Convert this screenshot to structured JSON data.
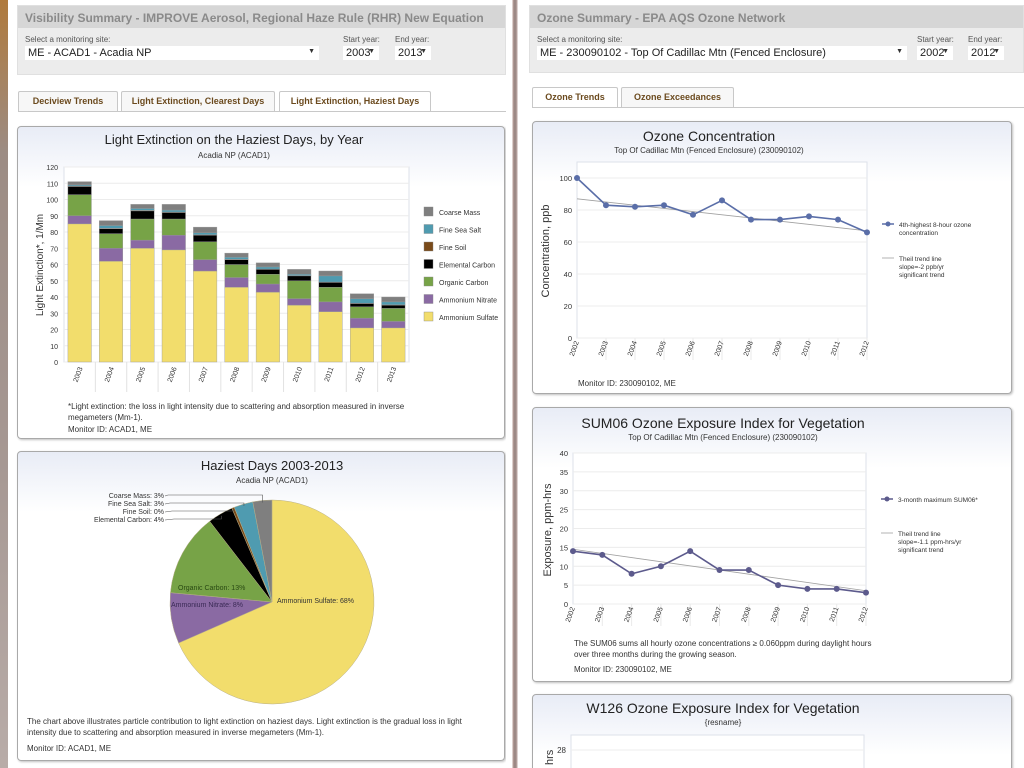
{
  "left": {
    "summary_title": "Visibility Summary - IMPROVE Aerosol, Regional Haze Rule (RHR) New Equation",
    "site_label": "Select a monitoring site:",
    "site_value": "ME - ACAD1 - Acadia NP",
    "start_label": "Start year:",
    "start_value": "2003",
    "end_label": "End year:",
    "end_value": "2013",
    "tabs": [
      {
        "label": "Deciview Trends",
        "active": false
      },
      {
        "label": "Light Extinction, Clearest Days",
        "active": false
      },
      {
        "label": "Light Extinction, Haziest Days",
        "active": true
      }
    ],
    "bar_card": {
      "footnote": "*Light extinction: the loss in light intensity due to scattering and absorption measured in inverse megameters (Mm-1).",
      "monitor": "Monitor ID: ACAD1, ME"
    },
    "pie_card": {
      "description": "The chart above illustrates particle contribution to light extinction on haziest days. Light extinction is the gradual loss in light intensity due to scattering and absorption measured in inverse megameters (Mm-1).",
      "monitor": "Monitor ID: ACAD1, ME"
    }
  },
  "right": {
    "summary_title": "Ozone Summary - EPA AQS Ozone Network",
    "site_label": "Select a monitoring site:",
    "site_value": "ME - 230090102 - Top Of Cadillac Mtn (Fenced Enclosure)",
    "start_label": "Start year:",
    "start_value": "2002",
    "end_label": "End year:",
    "end_value": "2012",
    "tabs": [
      {
        "label": "Ozone Trends",
        "active": true
      },
      {
        "label": "Ozone Exceedances",
        "active": false
      }
    ],
    "ozone_card": {
      "monitor": "Monitor ID: 230090102, ME"
    },
    "sum06_card": {
      "note": "The SUM06 sums all hourly ozone concentrations ≥ 0.060ppm during daylight hours over three months during the growing season.",
      "monitor": "Monitor ID: 230090102, ME"
    }
  },
  "colors": {
    "coarse_mass": "#7f7f7f",
    "fine_sea_salt": "#4f9bb0",
    "fine_soil": "#7a4b1a",
    "elemental_carbon": "#000000",
    "organic_carbon": "#77a347",
    "ammonium_nitrate": "#8a6aa3",
    "ammonium_sulfate": "#f2dd6c",
    "ozone_line": "#5a6ea8",
    "sum06_line": "#5c5a8c",
    "trend_line": "#a0a0a0"
  },
  "chart_data": [
    {
      "id": "bar",
      "type": "bar",
      "stacked": true,
      "title": "Light Extinction on the Haziest Days, by Year",
      "subtitle": "Acadia NP (ACAD1)",
      "xlabel": "",
      "ylabel": "Light Extinction*, 1/Mm",
      "ylim": [
        0,
        120
      ],
      "yticks": [
        0,
        10,
        20,
        30,
        40,
        50,
        60,
        70,
        80,
        90,
        100,
        110,
        120
      ],
      "grid": true,
      "legend": "right",
      "categories": [
        "2003",
        "2004",
        "2005",
        "2006",
        "2007",
        "2008",
        "2009",
        "2010",
        "2011",
        "2012",
        "2013"
      ],
      "series": [
        {
          "name": "Ammonium Sulfate",
          "key": "ammonium_sulfate",
          "values": [
            85,
            62,
            70,
            69,
            56,
            46,
            43,
            35,
            31,
            21,
            21
          ]
        },
        {
          "name": "Ammonium Nitrate",
          "key": "ammonium_nitrate",
          "values": [
            5,
            8,
            5,
            9,
            7,
            6,
            5,
            4,
            6,
            6,
            4
          ]
        },
        {
          "name": "Organic Carbon",
          "key": "organic_carbon",
          "values": [
            13,
            9,
            13,
            10,
            11,
            8,
            6,
            11,
            9,
            7,
            8
          ]
        },
        {
          "name": "Elemental Carbon",
          "key": "elemental_carbon",
          "values": [
            5,
            3,
            5,
            4,
            4,
            3,
            3,
            3,
            3,
            2,
            2
          ]
        },
        {
          "name": "Fine Soil",
          "key": "fine_soil",
          "values": [
            0.3,
            0.3,
            0.3,
            0.3,
            0.3,
            0.2,
            0.2,
            0.2,
            0.2,
            0.2,
            0.2
          ]
        },
        {
          "name": "Fine Sea Salt",
          "key": "fine_sea_salt",
          "values": [
            0.7,
            1.7,
            1.2,
            1.2,
            1.2,
            1.3,
            1.3,
            0.8,
            3.8,
            2.8,
            1.8
          ]
        },
        {
          "name": "Coarse Mass",
          "key": "coarse_mass",
          "values": [
            2,
            3,
            2.5,
            3.5,
            3.5,
            2.5,
            2.5,
            3,
            3,
            3,
            3
          ]
        }
      ],
      "legend_order": [
        "Coarse Mass",
        "Fine Sea Salt",
        "Fine Soil",
        "Elemental Carbon",
        "Organic Carbon",
        "Ammonium Nitrate",
        "Ammonium Sulfate"
      ]
    },
    {
      "id": "pie",
      "type": "pie",
      "title": "Haziest Days 2003-2013",
      "subtitle": "Acadia NP (ACAD1)",
      "slices": [
        {
          "label": "Ammonium Sulfate",
          "key": "ammonium_sulfate",
          "value": 68,
          "text": "Ammonium Sulfate: 68%"
        },
        {
          "label": "Ammonium Nitrate",
          "key": "ammonium_nitrate",
          "value": 8,
          "text": "Ammonium Nitrate: 8%"
        },
        {
          "label": "Organic Carbon",
          "key": "organic_carbon",
          "value": 13,
          "text": "Organic Carbon: 13%"
        },
        {
          "label": "Elemental Carbon",
          "key": "elemental_carbon",
          "value": 4,
          "text": "Elemental Carbon: 4%"
        },
        {
          "label": "Fine Soil",
          "key": "fine_soil",
          "value": 0.4,
          "text": "Fine Soil: 0%"
        },
        {
          "label": "Fine Sea Salt",
          "key": "fine_sea_salt",
          "value": 3,
          "text": "Fine Sea Salt: 3%"
        },
        {
          "label": "Coarse Mass",
          "key": "coarse_mass",
          "value": 3,
          "text": "Coarse Mass: 3%"
        }
      ]
    },
    {
      "id": "ozone",
      "type": "line",
      "title": "Ozone Concentration",
      "subtitle": "Top Of Cadillac Mtn (Fenced Enclosure) (230090102)",
      "xlabel": "",
      "ylabel": "Concentration, ppb",
      "ylim": [
        0,
        110
      ],
      "yticks": [
        0,
        20,
        40,
        60,
        80,
        100
      ],
      "grid": true,
      "legend": "right",
      "x": [
        "2002",
        "2003",
        "2004",
        "2005",
        "2006",
        "2007",
        "2008",
        "2009",
        "2010",
        "2011",
        "2012"
      ],
      "series": [
        {
          "name": "4th-highest 8-hour ozone concentration",
          "values": [
            100,
            83,
            82,
            83,
            77,
            86,
            74,
            74,
            76,
            74,
            66
          ]
        }
      ],
      "trend": {
        "name": "Theil trend line slope=-2 ppb/yr significant trend",
        "start": 87,
        "end": 67
      }
    },
    {
      "id": "sum06",
      "type": "line",
      "title": "SUM06 Ozone Exposure Index for Vegetation",
      "subtitle": "Top Of Cadillac Mtn (Fenced Enclosure) (230090102)",
      "xlabel": "",
      "ylabel": "Exposure, ppm-hrs",
      "ylim": [
        0,
        40
      ],
      "yticks": [
        0,
        5,
        10,
        15,
        20,
        25,
        30,
        35,
        40
      ],
      "grid": true,
      "legend": "right",
      "x": [
        "2002",
        "2003",
        "2004",
        "2005",
        "2006",
        "2007",
        "2008",
        "2009",
        "2010",
        "2011",
        "2012"
      ],
      "series": [
        {
          "name": "3-month maximum SUM06*",
          "values": [
            14,
            13,
            8,
            10,
            14,
            9,
            9,
            5,
            4,
            4,
            3
          ]
        }
      ],
      "trend": {
        "name": "Theil trend line slope=-1.1 ppm-hrs/yr significant trend",
        "start": 14.5,
        "end": 3.5
      }
    },
    {
      "id": "w126",
      "type": "line",
      "title": "W126 Ozone Exposure Index for Vegetation",
      "subtitle": "{resname}",
      "ylabel": "hrs",
      "yticks": [
        28
      ],
      "series": []
    }
  ]
}
